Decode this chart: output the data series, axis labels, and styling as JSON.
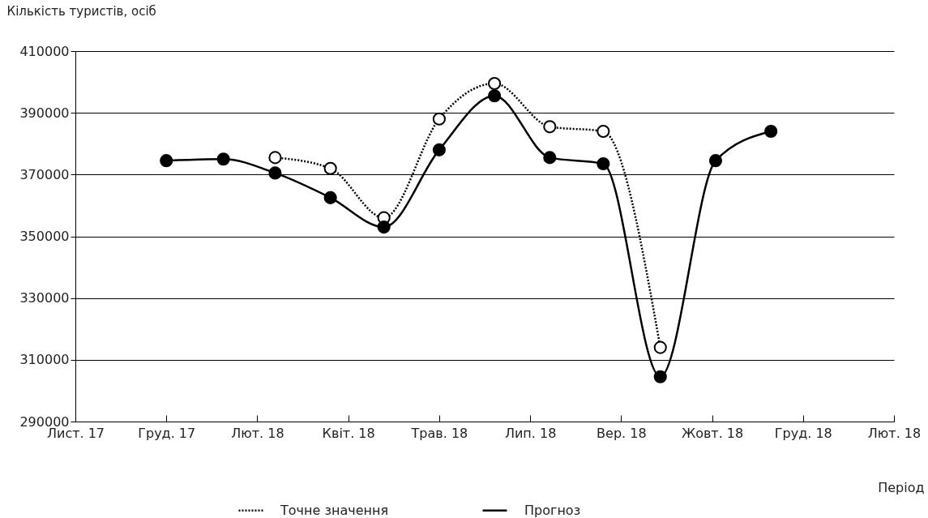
{
  "chart_data": {
    "type": "line",
    "ylabel": "Кількість туристів, осіб",
    "xlabel": "Період",
    "xlim": [
      "2017-11-01",
      "2019-02-03"
    ],
    "xticks": [
      {
        "value": "2017-11-01",
        "label": "Лист. 17"
      },
      {
        "value": "2017-12-22",
        "label": "Груд. 17"
      },
      {
        "value": "2018-02-11",
        "label": "Лют. 18"
      },
      {
        "value": "2018-04-03",
        "label": "Квіт. 18"
      },
      {
        "value": "2018-05-24",
        "label": "Трав. 18"
      },
      {
        "value": "2018-07-14",
        "label": "Лип. 18"
      },
      {
        "value": "2018-09-03",
        "label": "Вер. 18"
      },
      {
        "value": "2018-10-24",
        "label": "Жовт. 18"
      },
      {
        "value": "2018-12-14",
        "label": "Груд. 18"
      },
      {
        "value": "2019-02-03",
        "label": "Лют. 18"
      }
    ],
    "ylim": [
      290000,
      410000
    ],
    "yticks": [
      290000,
      310000,
      330000,
      350000,
      370000,
      390000,
      410000
    ],
    "grid": "y",
    "legend": "bottom",
    "marker": "circle",
    "series": [
      {
        "name": "Точне значення",
        "color": "#000000",
        "line_style": "dotted",
        "x": [
          "2018-02-21",
          "2018-03-24",
          "2018-04-23",
          "2018-05-24",
          "2018-06-24",
          "2018-07-25",
          "2018-08-24",
          "2018-09-25"
        ],
        "values": [
          375500,
          372000,
          356000,
          388000,
          399500,
          385500,
          384000,
          314000
        ]
      },
      {
        "name": "Прогноз",
        "color": "#000000",
        "line_style": "solid",
        "x": [
          "2017-12-22",
          "2018-01-23",
          "2018-02-21",
          "2018-03-24",
          "2018-04-23",
          "2018-05-24",
          "2018-06-24",
          "2018-07-25",
          "2018-08-24",
          "2018-09-25",
          "2018-10-26",
          "2018-11-26"
        ],
        "values": [
          374500,
          375000,
          370500,
          362500,
          353000,
          378000,
          395500,
          375500,
          373500,
          304500,
          374500,
          384000
        ]
      }
    ]
  }
}
